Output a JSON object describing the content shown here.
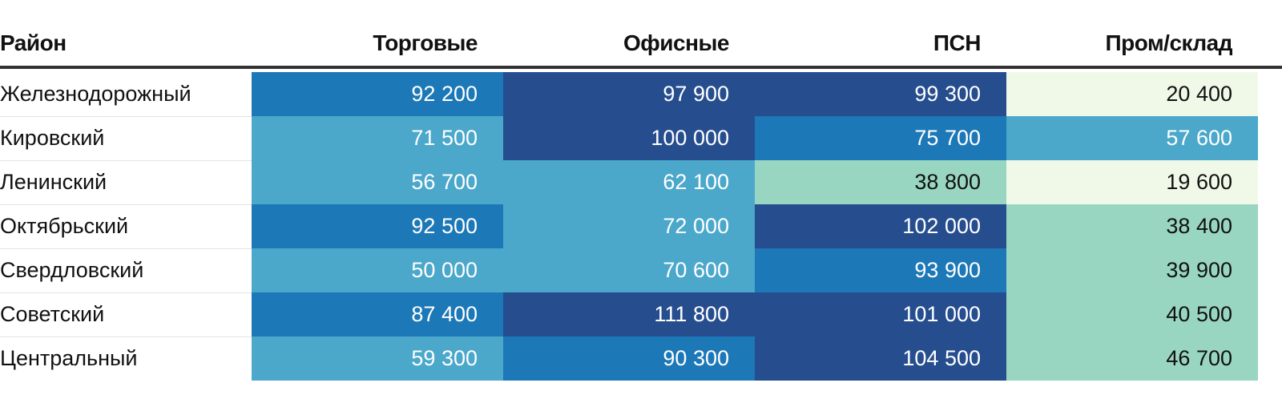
{
  "chart_data": {
    "type": "table",
    "columns": [
      "Район",
      "Торговые",
      "Офисные",
      "ПСН",
      "Пром/склад"
    ],
    "rows": [
      {
        "district": "Железнодорожный",
        "values": [
          "92 200",
          "97 900",
          "99 300",
          "20 400"
        ],
        "numbers": [
          92200,
          97900,
          99300,
          20400
        ]
      },
      {
        "district": "Кировский",
        "values": [
          "71 500",
          "100 000",
          "75 700",
          "57 600"
        ],
        "numbers": [
          71500,
          100000,
          75700,
          57600
        ]
      },
      {
        "district": "Ленинский",
        "values": [
          "56 700",
          "62 100",
          "38 800",
          "19 600"
        ],
        "numbers": [
          56700,
          62100,
          38800,
          19600
        ]
      },
      {
        "district": "Октябрьский",
        "values": [
          "92 500",
          "72 000",
          "102 000",
          "38 400"
        ],
        "numbers": [
          92500,
          72000,
          102000,
          38400
        ]
      },
      {
        "district": "Свердловский",
        "values": [
          "50 000",
          "70 600",
          "93 900",
          "39 900"
        ],
        "numbers": [
          50000,
          70600,
          93900,
          39900
        ]
      },
      {
        "district": "Советский",
        "values": [
          "87 400",
          "111 800",
          "101 000",
          "40 500"
        ],
        "numbers": [
          87400,
          111800,
          101000,
          40500
        ]
      },
      {
        "district": "Центральный",
        "values": [
          "59 300",
          "90 300",
          "104 500",
          "46 700"
        ],
        "numbers": [
          59300,
          90300,
          104500,
          46700
        ]
      }
    ],
    "color_scale": [
      {
        "max": 30000,
        "color": "#f0f9e8",
        "text": "#111111"
      },
      {
        "max": 50000,
        "color": "#99d6c2",
        "text": "#111111"
      },
      {
        "max": 75000,
        "color": "#4ba8cb",
        "text": "#ffffff"
      },
      {
        "max": 95000,
        "color": "#1d78b7",
        "text": "#ffffff"
      },
      {
        "max": 1000000,
        "color": "#264e8f",
        "text": "#ffffff"
      }
    ]
  }
}
